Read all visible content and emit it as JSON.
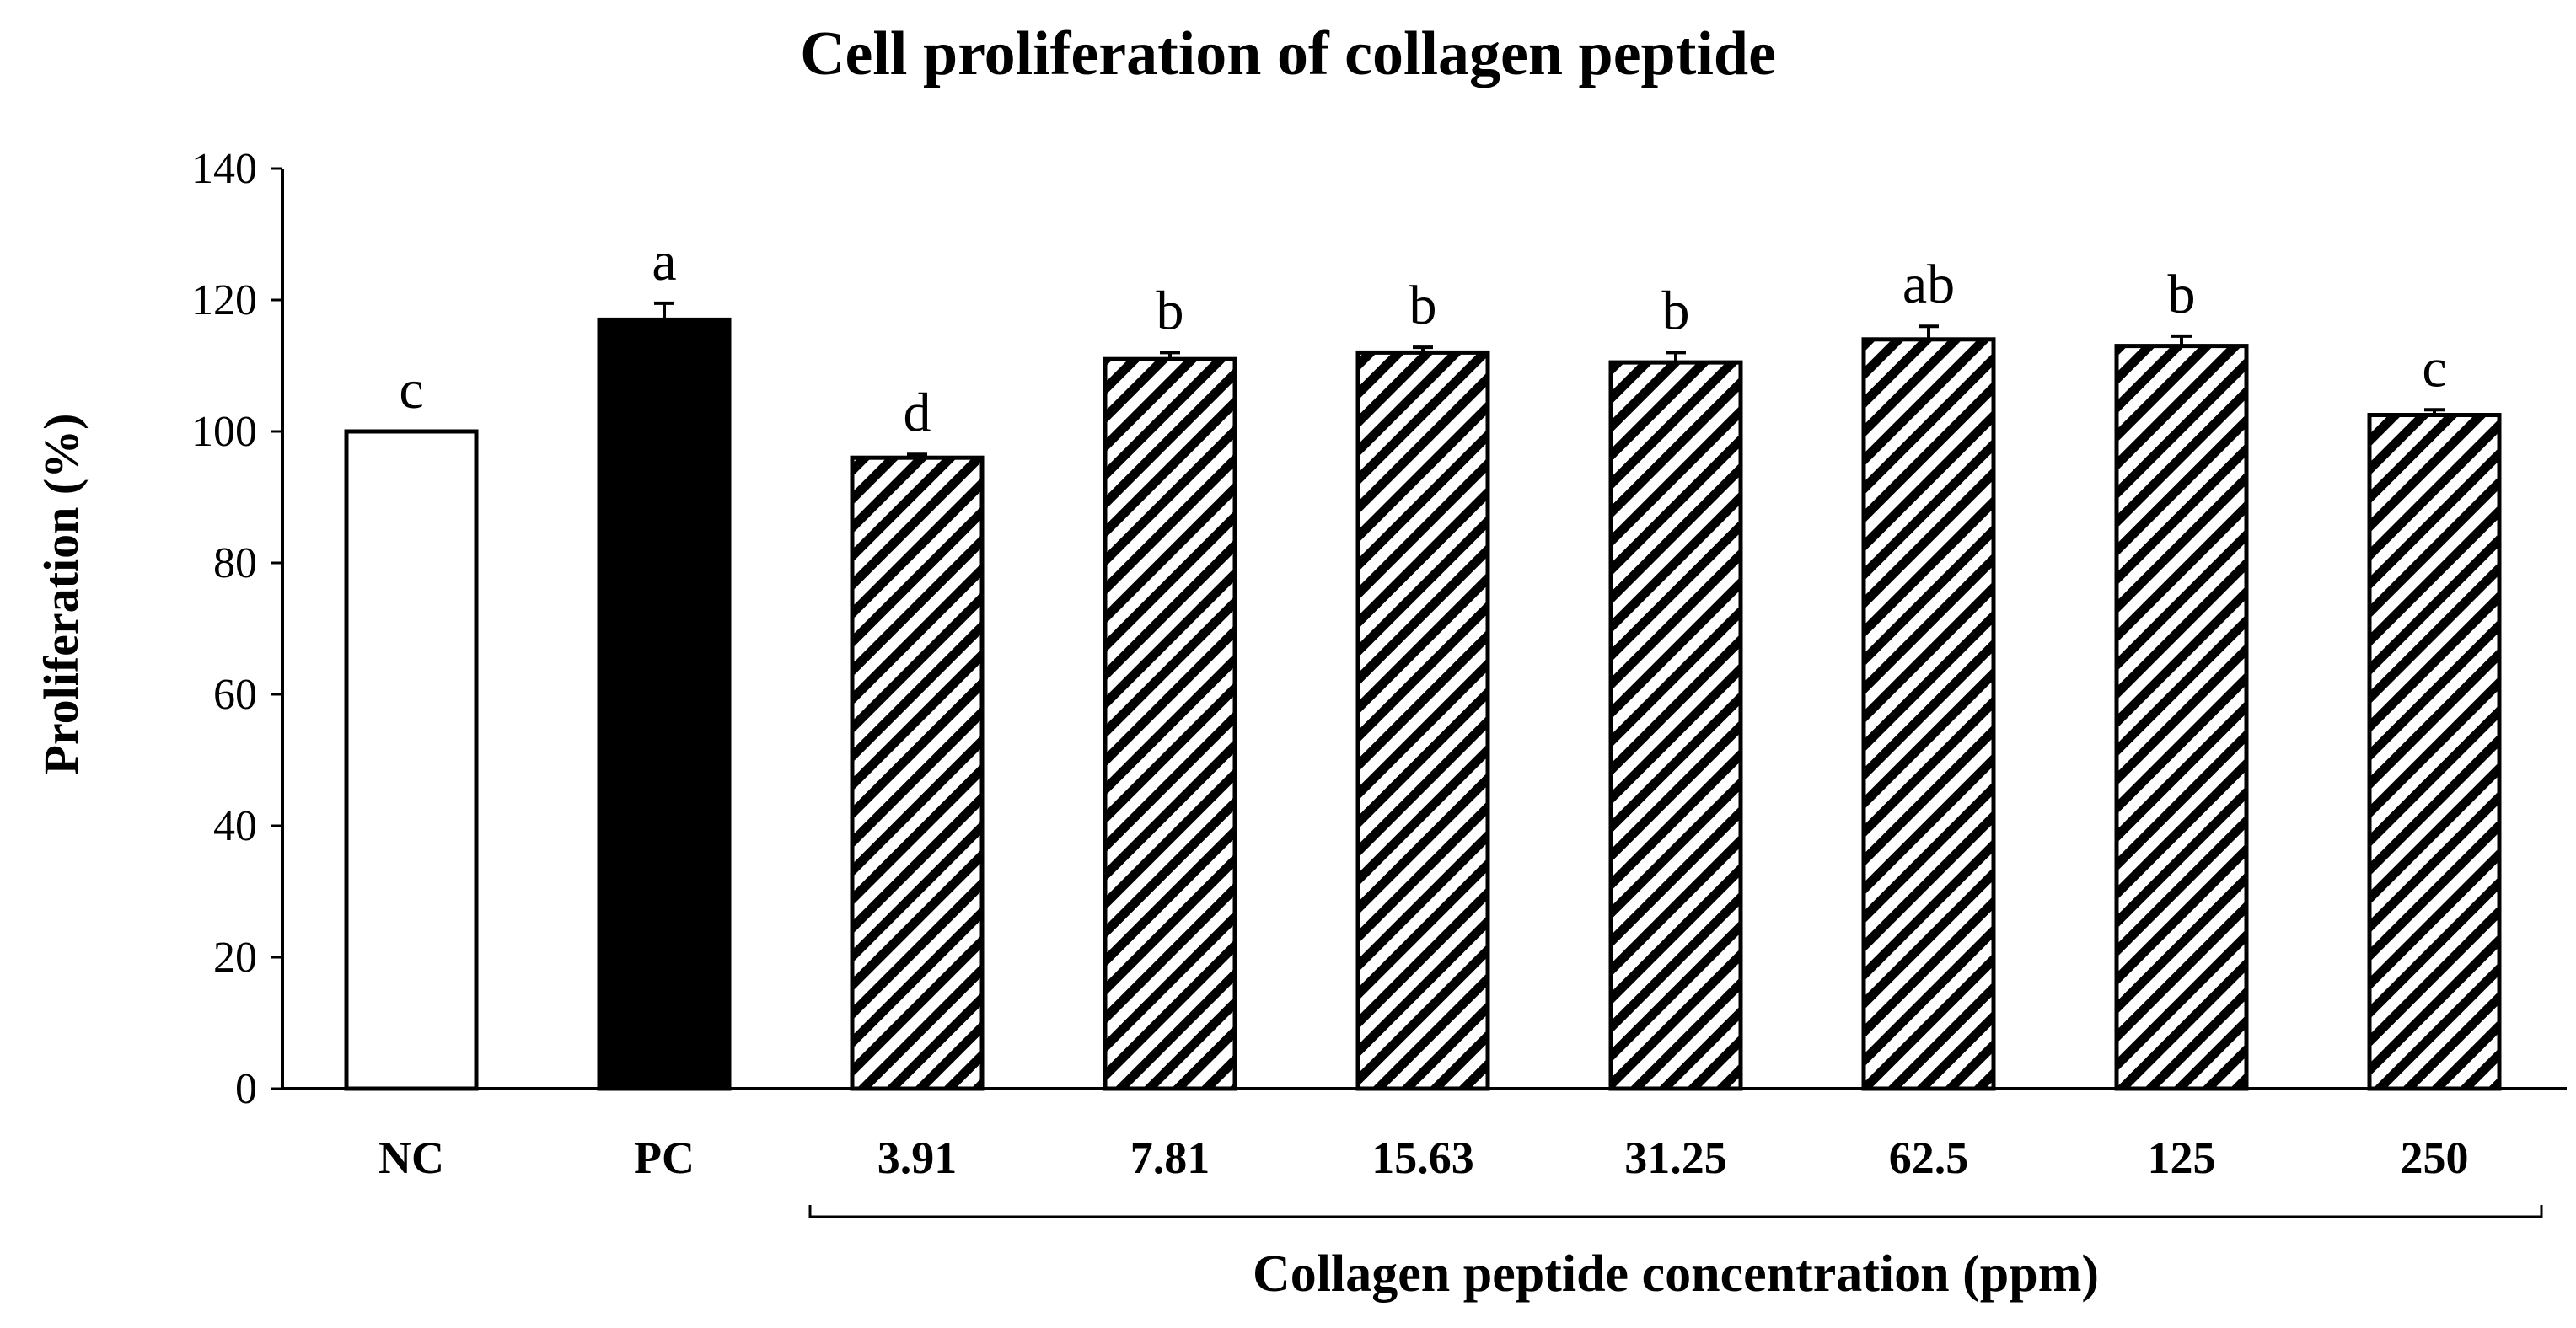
{
  "chart_data": {
    "type": "bar",
    "title": "Cell proliferation of collagen peptide",
    "xlabel": "Collagen peptide concentration (ppm)",
    "ylabel": "Proliferation (%)",
    "ylim": [
      0,
      140
    ],
    "yticks": [
      0,
      20,
      40,
      60,
      80,
      100,
      120,
      140
    ],
    "grid": false,
    "categories": [
      "NC",
      "PC",
      "3.91",
      "7.81",
      "15.63",
      "31.25",
      "62.5",
      "125",
      "250"
    ],
    "values": [
      100,
      117,
      96,
      111,
      112,
      110.5,
      114,
      113,
      102.5
    ],
    "errors": [
      0,
      2.5,
      0.5,
      1,
      0.8,
      1.5,
      2,
      1.5,
      0.8
    ],
    "significance_letters": [
      "c",
      "a",
      "d",
      "b",
      "b",
      "b",
      "ab",
      "b",
      "c"
    ],
    "fill_styles": [
      "white",
      "black",
      "hatched",
      "hatched",
      "hatched",
      "hatched",
      "hatched",
      "hatched",
      "hatched"
    ],
    "group_bracket": {
      "label": "Collagen peptide concentration (ppm)",
      "from_category": "3.91",
      "to_category": "250"
    }
  },
  "colors": {
    "bar_outline": "#000000",
    "negative_control_fill": "#ffffff",
    "positive_control_fill": "#000000",
    "hatch_color": "#000000",
    "background": "#ffffff"
  }
}
